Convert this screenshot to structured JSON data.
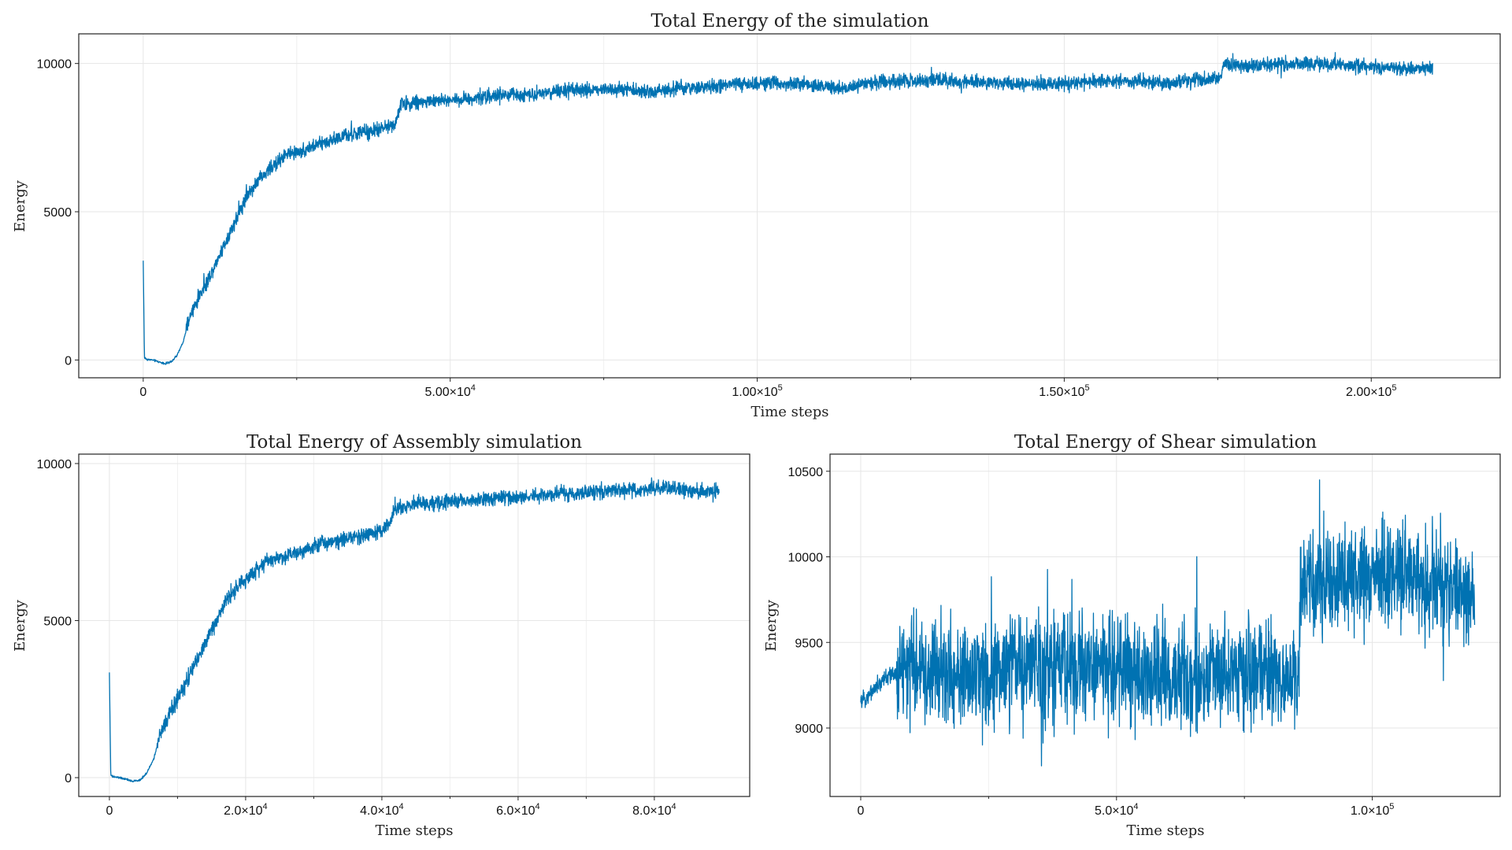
{
  "chart_data": [
    {
      "type": "line",
      "title": "Total Energy of the simulation",
      "xlabel": "Time steps",
      "ylabel": "Energy",
      "xlim": [
        -10500,
        221000
      ],
      "ylim": [
        -600,
        11000
      ],
      "x_ticks": [
        0,
        50000,
        100000,
        150000,
        200000
      ],
      "x_tick_labels": [
        "0",
        "5.00×10^4",
        "1.00×10^5",
        "1.50×10^5",
        "2.00×10^5"
      ],
      "y_ticks": [
        0,
        5000,
        10000
      ],
      "y_tick_labels": [
        "0",
        "5000",
        "10000"
      ],
      "grid": true,
      "color": "#0072b2",
      "series": [
        {
          "x": [
            0,
            200,
            600,
            1500,
            2500,
            3500,
            4500,
            5500,
            6500,
            7500,
            9000,
            11000,
            13000,
            15000,
            17000,
            19000,
            21000,
            23000,
            25000,
            27000,
            29000,
            31000,
            33000,
            35000,
            37000,
            39000,
            41000,
            42000,
            43000,
            45000,
            48000,
            52000,
            57000,
            62000,
            67000,
            72000,
            77000,
            82000,
            87000,
            92000,
            97000,
            102000,
            107000,
            112000,
            114000,
            117000,
            122000,
            127000,
            132000,
            137000,
            142000,
            147000,
            152000,
            157000,
            162000,
            167000,
            172000,
            175500,
            176000,
            180000,
            185000,
            190000,
            195000,
            200000,
            205000,
            210000
          ],
          "y": [
            3350,
            80,
            20,
            0,
            -60,
            -120,
            -80,
            150,
            600,
            1400,
            2100,
            2900,
            3800,
            4700,
            5600,
            6100,
            6500,
            6900,
            7000,
            7150,
            7300,
            7450,
            7550,
            7650,
            7700,
            7800,
            8000,
            8600,
            8650,
            8700,
            8750,
            8800,
            8900,
            8950,
            9050,
            9100,
            9150,
            9050,
            9150,
            9200,
            9300,
            9350,
            9300,
            9200,
            9100,
            9350,
            9400,
            9450,
            9400,
            9350,
            9300,
            9300,
            9350,
            9400,
            9400,
            9350,
            9450,
            9500,
            9950,
            9900,
            9950,
            10000,
            9950,
            9900,
            9850,
            9850
          ],
          "noise": 260
        }
      ]
    },
    {
      "type": "line",
      "title": "Total Energy of Assembly simulation",
      "xlabel": "Time steps",
      "ylabel": "Energy",
      "xlim": [
        -4500,
        94000
      ],
      "ylim": [
        -600,
        10300
      ],
      "x_ticks": [
        0,
        20000,
        40000,
        60000,
        80000
      ],
      "x_tick_labels": [
        "0",
        "2.0×10^4",
        "4.0×10^4",
        "6.0×10^4",
        "8.0×10^4"
      ],
      "y_ticks": [
        0,
        5000,
        10000
      ],
      "y_tick_labels": [
        "0",
        "5000",
        "10000"
      ],
      "grid": true,
      "color": "#0072b2",
      "series": [
        {
          "x": [
            0,
            200,
            600,
            1500,
            2500,
            3500,
            4500,
            5500,
            6500,
            7500,
            9000,
            11000,
            13000,
            15000,
            17000,
            19000,
            21000,
            23000,
            25000,
            27000,
            29000,
            31000,
            33000,
            35000,
            37000,
            39000,
            41000,
            42000,
            43000,
            45000,
            48000,
            52000,
            57000,
            62000,
            67000,
            72000,
            77000,
            82000,
            86000,
            89500
          ],
          "y": [
            3350,
            80,
            20,
            0,
            -60,
            -120,
            -80,
            150,
            600,
            1400,
            2100,
            2900,
            3800,
            4700,
            5600,
            6100,
            6500,
            6900,
            7000,
            7150,
            7300,
            7450,
            7550,
            7650,
            7700,
            7800,
            8000,
            8600,
            8650,
            8700,
            8750,
            8800,
            8900,
            8950,
            9050,
            9100,
            9150,
            9200,
            9100,
            9100
          ],
          "noise": 260
        }
      ]
    },
    {
      "type": "line",
      "title": "Total Energy of Shear simulation",
      "xlabel": "Time steps",
      "ylabel": "Energy",
      "xlim": [
        -6000,
        125000
      ],
      "ylim": [
        8600,
        10600
      ],
      "x_ticks": [
        0,
        50000,
        100000
      ],
      "x_tick_labels": [
        "0",
        "5.0×10^4",
        "1.0×10^5"
      ],
      "y_ticks": [
        9000,
        9500,
        10000,
        10500
      ],
      "y_tick_labels": [
        "9000",
        "9500",
        "10000",
        "10500"
      ],
      "grid": true,
      "color": "#0072b2",
      "series": [
        {
          "x": [
            0,
            5000,
            10000,
            20000,
            30000,
            40000,
            50000,
            60000,
            70000,
            80000,
            85500,
            86000,
            90000,
            100000,
            110000,
            120000
          ],
          "y": [
            9150,
            9300,
            9350,
            9300,
            9350,
            9350,
            9350,
            9300,
            9300,
            9300,
            9250,
            9850,
            9850,
            9900,
            9850,
            9800
          ],
          "noise": 340
        }
      ]
    }
  ]
}
